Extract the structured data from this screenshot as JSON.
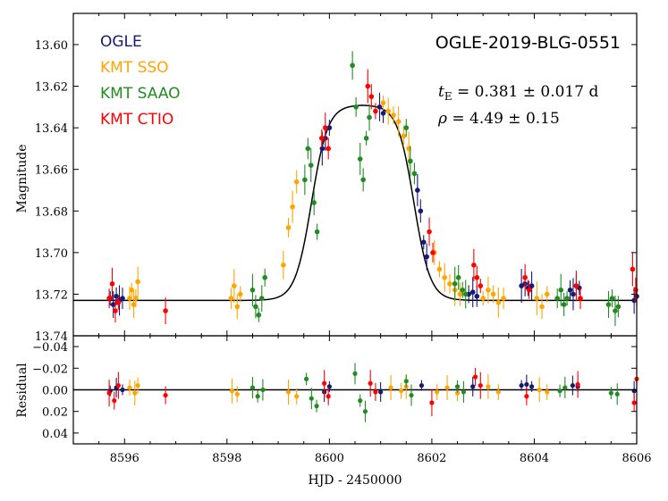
{
  "chart_data": {
    "type": "scatter",
    "title": "OGLE-2019-BLG-0551",
    "xlabel": "HJD - 2450000",
    "xlim": [
      8595.0,
      8606.0
    ],
    "xticks": [
      8596,
      8598,
      8600,
      8602,
      8604,
      8606
    ],
    "top_panel": {
      "ylabel": "Magnitude",
      "ylim": [
        13.74,
        13.585
      ],
      "yticks": [
        13.6,
        13.62,
        13.64,
        13.66,
        13.68,
        13.7,
        13.72,
        13.74
      ],
      "ytick_labels": [
        "13.60",
        "13.62",
        "13.64",
        "13.66",
        "13.68",
        "13.70",
        "13.72",
        "13.74"
      ]
    },
    "bottom_panel": {
      "ylabel": "Residual",
      "ylim": [
        0.05,
        -0.05
      ],
      "yticks": [
        -0.04,
        -0.02,
        0.0,
        0.02,
        0.04
      ],
      "ytick_labels": [
        "−0.04",
        "−0.02",
        "0.00",
        "0.02",
        "0.04"
      ]
    },
    "model": {
      "baseline": 13.723,
      "peak": 13.629,
      "t0": 8600.65,
      "half_width": 1.0,
      "edge": 0.16
    },
    "series": [
      {
        "name": "OGLE",
        "color": "#191970",
        "points": [
          [
            8595.72,
            13.722
          ],
          [
            8595.78,
            13.725
          ],
          [
            8595.84,
            13.721
          ],
          [
            8595.9,
            13.723
          ],
          [
            8595.96,
            13.722
          ],
          [
            8599.86,
            13.65
          ],
          [
            8599.92,
            13.645
          ],
          [
            8600.0,
            13.64
          ],
          [
            8600.98,
            13.63
          ],
          [
            8601.05,
            13.633
          ],
          [
            8601.72,
            13.67
          ],
          [
            8601.78,
            13.68
          ],
          [
            8601.84,
            13.695
          ],
          [
            8601.9,
            13.702
          ],
          [
            8602.72,
            13.72
          ],
          [
            8602.8,
            13.719
          ],
          [
            8602.88,
            13.721
          ],
          [
            8603.75,
            13.716
          ],
          [
            8603.82,
            13.715
          ],
          [
            8603.88,
            13.717
          ],
          [
            8603.95,
            13.716
          ],
          [
            8604.7,
            13.718
          ],
          [
            8604.76,
            13.72
          ],
          [
            8604.82,
            13.716
          ],
          [
            8604.88,
            13.717
          ],
          [
            8605.95,
            13.723
          ],
          [
            8606.0,
            13.721
          ]
        ],
        "residuals": [
          [
            8595.72,
            0.001
          ],
          [
            8595.84,
            -0.002
          ],
          [
            8595.96,
            0.0
          ],
          [
            8599.9,
            0.002
          ],
          [
            8600.0,
            -0.003
          ],
          [
            8601.0,
            0.002
          ],
          [
            8601.8,
            -0.004
          ],
          [
            8602.8,
            -0.003
          ],
          [
            8603.75,
            -0.004
          ],
          [
            8603.85,
            -0.005
          ],
          [
            8603.95,
            -0.003
          ],
          [
            8604.75,
            -0.004
          ],
          [
            8604.85,
            -0.003
          ],
          [
            8605.95,
            0.001
          ]
        ]
      },
      {
        "name": "KMT SSO",
        "color": "#FFA500",
        "points": [
          [
            8596.1,
            13.722
          ],
          [
            8596.14,
            13.718
          ],
          [
            8596.18,
            13.725
          ],
          [
            8596.22,
            13.722
          ],
          [
            8596.26,
            13.714
          ],
          [
            8598.08,
            13.722
          ],
          [
            8598.14,
            13.716
          ],
          [
            8598.2,
            13.726
          ],
          [
            8598.26,
            13.72
          ],
          [
            8599.1,
            13.706
          ],
          [
            8599.2,
            13.688
          ],
          [
            8599.28,
            13.678
          ],
          [
            8599.36,
            13.666
          ],
          [
            8601.05,
            13.628
          ],
          [
            8601.15,
            13.632
          ],
          [
            8601.25,
            13.634
          ],
          [
            8601.35,
            13.637
          ],
          [
            8601.45,
            13.644
          ],
          [
            8601.55,
            13.65
          ],
          [
            8602.05,
            13.7
          ],
          [
            8602.15,
            13.708
          ],
          [
            8602.25,
            13.712
          ],
          [
            8602.35,
            13.715
          ],
          [
            8602.45,
            13.718
          ],
          [
            8602.55,
            13.72
          ],
          [
            8603.0,
            13.722
          ],
          [
            8603.1,
            13.718
          ],
          [
            8603.2,
            13.72
          ],
          [
            8603.3,
            13.724
          ],
          [
            8603.4,
            13.722
          ],
          [
            8604.05,
            13.722
          ],
          [
            8604.15,
            13.726
          ],
          [
            8604.25,
            13.72
          ]
        ],
        "residuals": [
          [
            8596.1,
            -0.002
          ],
          [
            8596.2,
            0.003
          ],
          [
            8596.26,
            -0.004
          ],
          [
            8598.1,
            0.001
          ],
          [
            8598.2,
            0.004
          ],
          [
            8599.2,
            0.002
          ],
          [
            8599.36,
            0.006
          ],
          [
            8601.2,
            -0.002
          ],
          [
            8601.4,
            0.001
          ],
          [
            8601.5,
            -0.003
          ],
          [
            8602.1,
            0.002
          ],
          [
            8602.3,
            -0.002
          ],
          [
            8602.5,
            0.003
          ],
          [
            8603.1,
            -0.003
          ],
          [
            8603.3,
            0.002
          ],
          [
            8604.1,
            0.0
          ],
          [
            8604.25,
            0.002
          ]
        ]
      },
      {
        "name": "KMT SAAO",
        "color": "#228B22",
        "points": [
          [
            8598.5,
            13.718
          ],
          [
            8598.56,
            13.726
          ],
          [
            8598.62,
            13.73
          ],
          [
            8598.68,
            13.722
          ],
          [
            8598.74,
            13.712
          ],
          [
            8599.52,
            13.665
          ],
          [
            8599.58,
            13.65
          ],
          [
            8599.64,
            13.658
          ],
          [
            8599.7,
            13.676
          ],
          [
            8599.76,
            13.69
          ],
          [
            8600.45,
            13.61
          ],
          [
            8600.52,
            13.63
          ],
          [
            8600.6,
            13.655
          ],
          [
            8600.66,
            13.665
          ],
          [
            8600.72,
            13.645
          ],
          [
            8600.78,
            13.635
          ],
          [
            8601.5,
            13.64
          ],
          [
            8601.58,
            13.656
          ],
          [
            8601.66,
            13.662
          ],
          [
            8602.45,
            13.715
          ],
          [
            8602.52,
            13.712
          ],
          [
            8602.6,
            13.718
          ],
          [
            8602.66,
            13.72
          ],
          [
            8604.45,
            13.722
          ],
          [
            8604.52,
            13.718
          ],
          [
            8604.58,
            13.725
          ],
          [
            8604.64,
            13.722
          ],
          [
            8605.45,
            13.725
          ],
          [
            8605.52,
            13.722
          ],
          [
            8605.58,
            13.728
          ],
          [
            8605.64,
            13.726
          ]
        ],
        "residuals": [
          [
            8598.5,
            -0.002
          ],
          [
            8598.6,
            0.006
          ],
          [
            8598.7,
            0.0
          ],
          [
            8599.55,
            -0.01
          ],
          [
            8599.65,
            0.008
          ],
          [
            8599.75,
            0.015
          ],
          [
            8600.5,
            -0.015
          ],
          [
            8600.6,
            0.01
          ],
          [
            8600.7,
            0.02
          ],
          [
            8601.5,
            -0.008
          ],
          [
            8601.6,
            0.005
          ],
          [
            8602.5,
            -0.003
          ],
          [
            8602.62,
            0.002
          ],
          [
            8604.5,
            0.001
          ],
          [
            8604.6,
            -0.002
          ],
          [
            8605.5,
            0.003
          ],
          [
            8605.62,
            0.004
          ]
        ]
      },
      {
        "name": "KMT CTIO",
        "color": "#FF0000",
        "points": [
          [
            8595.7,
            13.722
          ],
          [
            8595.76,
            13.715
          ],
          [
            8595.82,
            13.728
          ],
          [
            8595.88,
            13.724
          ],
          [
            8596.8,
            13.728
          ],
          [
            8599.85,
            13.645
          ],
          [
            8599.92,
            13.64
          ],
          [
            8599.98,
            13.65
          ],
          [
            8600.75,
            13.62
          ],
          [
            8600.82,
            13.625
          ],
          [
            8600.9,
            13.632
          ],
          [
            8601.95,
            13.69
          ],
          [
            8602.02,
            13.7
          ],
          [
            8602.82,
            13.706
          ],
          [
            8602.88,
            13.712
          ],
          [
            8602.95,
            13.716
          ],
          [
            8603.82,
            13.712
          ],
          [
            8603.9,
            13.718
          ],
          [
            8604.82,
            13.716
          ],
          [
            8604.9,
            13.722
          ],
          [
            8605.92,
            13.708
          ],
          [
            8605.98,
            13.718
          ]
        ],
        "residuals": [
          [
            8595.7,
            0.003
          ],
          [
            8595.8,
            0.01
          ],
          [
            8595.88,
            -0.004
          ],
          [
            8596.8,
            0.005
          ],
          [
            8599.9,
            -0.006
          ],
          [
            8599.98,
            0.006
          ],
          [
            8600.8,
            -0.006
          ],
          [
            8600.9,
            0.002
          ],
          [
            8602.0,
            0.012
          ],
          [
            8602.85,
            -0.012
          ],
          [
            8602.95,
            -0.004
          ],
          [
            8603.85,
            0.006
          ],
          [
            8604.85,
            -0.005
          ],
          [
            8605.95,
            0.012
          ],
          [
            8606.0,
            -0.01
          ]
        ]
      }
    ],
    "annotations": {
      "te_label": "t",
      "te_sub": "E",
      "te_value": " = 0.381 ± 0.017 d",
      "rho_label": "ρ",
      "rho_value": " = 4.49 ± 0.15"
    }
  }
}
